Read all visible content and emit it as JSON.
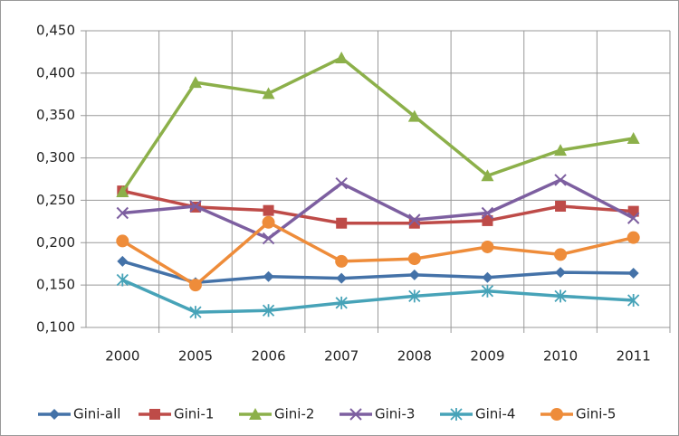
{
  "chart_data": {
    "type": "line",
    "categories": [
      "2000",
      "2005",
      "2006",
      "2007",
      "2008",
      "2009",
      "2010",
      "2011"
    ],
    "series": [
      {
        "name": "Gini-all",
        "color": "#4472a8",
        "marker": "diamond",
        "values": [
          0.178,
          0.153,
          0.16,
          0.158,
          0.162,
          0.159,
          0.165,
          0.164
        ]
      },
      {
        "name": "Gini-1",
        "color": "#be4b48",
        "marker": "square",
        "values": [
          0.261,
          0.242,
          0.238,
          0.223,
          0.223,
          0.226,
          0.243,
          0.237
        ]
      },
      {
        "name": "Gini-2",
        "color": "#8cb04a",
        "marker": "triangle",
        "values": [
          0.26,
          0.389,
          0.376,
          0.418,
          0.349,
          0.279,
          0.309,
          0.323
        ]
      },
      {
        "name": "Gini-3",
        "color": "#7d5fa0",
        "marker": "x",
        "values": [
          0.235,
          0.243,
          0.205,
          0.27,
          0.227,
          0.235,
          0.274,
          0.229
        ]
      },
      {
        "name": "Gini-4",
        "color": "#47a3b8",
        "marker": "star",
        "values": [
          0.156,
          0.118,
          0.12,
          0.129,
          0.137,
          0.143,
          0.137,
          0.132
        ]
      },
      {
        "name": "Gini-5",
        "color": "#ee8c3a",
        "marker": "circle",
        "values": [
          0.202,
          0.15,
          0.224,
          0.178,
          0.181,
          0.195,
          0.186,
          0.206
        ]
      }
    ],
    "ylim": [
      0.1,
      0.45
    ],
    "yticks": [
      {
        "value": 0.1,
        "label": "0,100"
      },
      {
        "value": 0.15,
        "label": "0,150"
      },
      {
        "value": 0.2,
        "label": "0,200"
      },
      {
        "value": 0.25,
        "label": "0,250"
      },
      {
        "value": 0.3,
        "label": "0,300"
      },
      {
        "value": 0.35,
        "label": "0,350"
      },
      {
        "value": 0.4,
        "label": "0,400"
      },
      {
        "value": 0.45,
        "label": "0,450"
      }
    ],
    "grid": true,
    "legend": "bottom"
  }
}
